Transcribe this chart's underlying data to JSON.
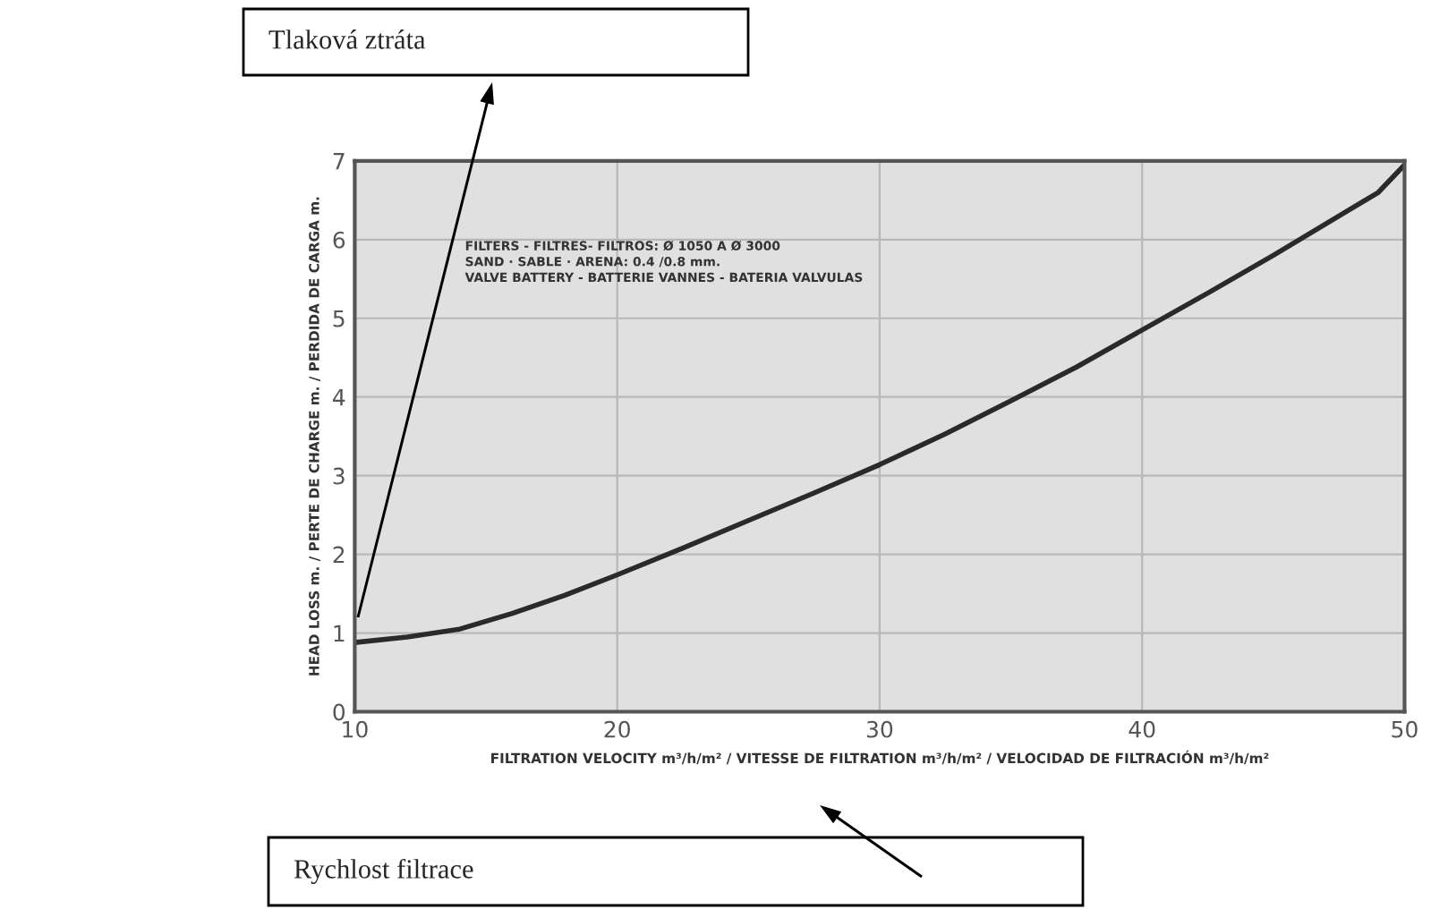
{
  "chart_data": {
    "type": "line",
    "xlabel": "FILTRATION VELOCITY m³/h/m² / VITESSE DE FILTRATION m³/h/m² / VELOCIDAD DE FILTRACIÓN m³/h/m²",
    "ylabel": "HEAD LOSS m. / PERTE DE CHARGE m. / PERDIDA DE CARGA m.",
    "x": [
      10,
      12,
      14,
      16,
      18,
      20,
      22.5,
      25,
      27.5,
      30,
      32.5,
      35,
      37.5,
      40,
      42.5,
      45,
      47.5,
      49,
      50
    ],
    "series": [
      {
        "color": "#2a2a2a",
        "values": [
          0.88,
          0.95,
          1.05,
          1.25,
          1.48,
          1.74,
          2.08,
          2.43,
          2.78,
          3.14,
          3.53,
          3.95,
          4.38,
          4.85,
          5.32,
          5.8,
          6.3,
          6.6,
          6.95
        ]
      }
    ],
    "xlim": [
      10,
      50
    ],
    "ylim": [
      0,
      7
    ],
    "xticks": [
      10,
      20,
      30,
      40,
      50
    ],
    "yticks": [
      0,
      1,
      2,
      3,
      4,
      5,
      6,
      7
    ],
    "grid": true,
    "marker": "none",
    "line_style": "solid",
    "annotations": [
      "FILTERS - FILTRES- FILTROS: Ø 1050 A Ø 3000",
      "SAND · SABLE · ARENA: 0.4 /0.8 mm.",
      "VALVE BATTERY - BATTERIE VANNES - BATERIA VALVULAS",
      "Tlaková ztráta",
      "Rychlost filtrace"
    ]
  }
}
